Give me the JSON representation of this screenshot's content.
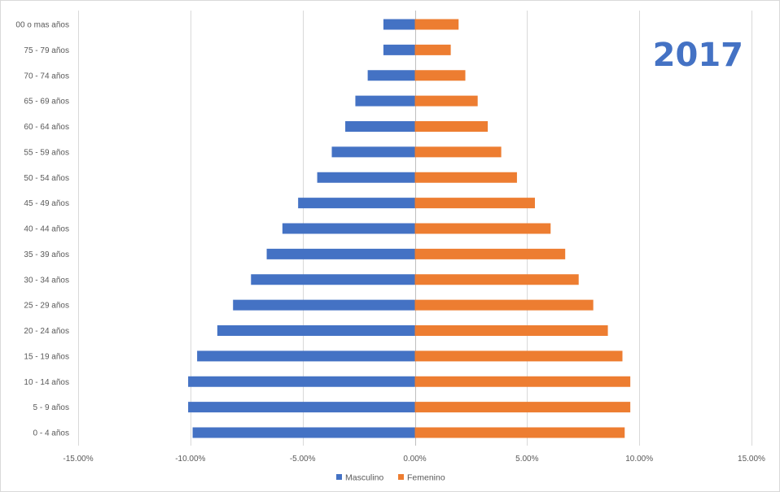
{
  "chart_data": {
    "type": "bar",
    "orientation": "horizontal",
    "title": "2017",
    "categories": [
      "0 - 4 años",
      "5 - 9 años",
      "10 - 14 años",
      "15 - 19 años",
      "20 - 24 años",
      "25 - 29 años",
      "30 - 34 años",
      "35 - 39 años",
      "40 - 44 años",
      "45 - 49 años",
      "50 - 54 años",
      "55 - 59 años",
      "60 - 64 años",
      "65 - 69 años",
      "70 - 74 años",
      "75 - 79 años",
      "00 o mas años"
    ],
    "series": [
      {
        "name": "Masculino",
        "color": "#4472c4",
        "values": [
          -9.9,
          -10.1,
          -10.1,
          -9.7,
          -8.8,
          -8.1,
          -7.3,
          -6.6,
          -5.9,
          -5.2,
          -4.35,
          -3.7,
          -3.1,
          -2.65,
          -2.1,
          -1.4,
          -1.4
        ]
      },
      {
        "name": "Femenino",
        "color": "#ed7d31",
        "values": [
          9.35,
          9.6,
          9.6,
          9.25,
          8.6,
          7.95,
          7.3,
          6.7,
          6.05,
          5.35,
          4.55,
          3.85,
          3.25,
          2.8,
          2.25,
          1.6,
          1.95
        ]
      }
    ],
    "x_ticks": [
      "-15.00%",
      "-10.00%",
      "-5.00%",
      "0.00%",
      "5.00%",
      "10.00%",
      "15.00%"
    ],
    "x_tick_values": [
      -15,
      -10,
      -5,
      0,
      5,
      10,
      15
    ],
    "xlim": [
      -15,
      15
    ],
    "grid": true,
    "legend": "bottom-center",
    "xlabel": "",
    "ylabel": ""
  }
}
